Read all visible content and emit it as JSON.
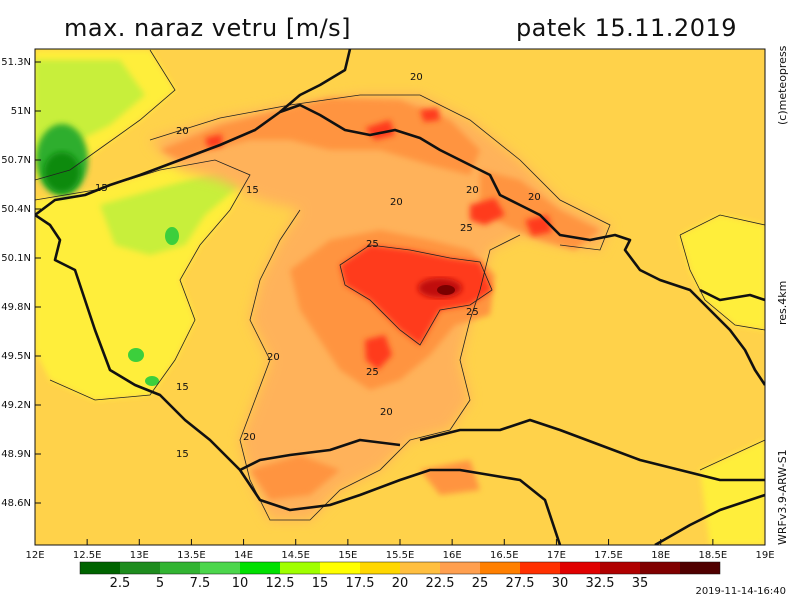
{
  "title": "max. naraz vetru [m/s]",
  "date": "patek 15.11.2019",
  "copyright": "(c)meteopress",
  "resolution": "res.4km",
  "model": "WRFv3.9-ARW-S1",
  "timestamp": "2019-11-14-16:40",
  "lat_ticks": [
    "51.3N",
    "51N",
    "50.7N",
    "50.4N",
    "50.1N",
    "49.8N",
    "49.5N",
    "49.2N",
    "48.9N",
    "48.6N"
  ],
  "lon_ticks": [
    "12E",
    "12.5E",
    "13E",
    "13.5E",
    "14E",
    "14.5E",
    "15E",
    "15.5E",
    "16E",
    "16.5E",
    "17E",
    "17.5E",
    "18E",
    "18.5E",
    "19E"
  ],
  "legend": {
    "labels": [
      "2.5",
      "5",
      "7.5",
      "10",
      "12.5",
      "15",
      "17.5",
      "20",
      "22.5",
      "25",
      "27.5",
      "30",
      "32.5",
      "35"
    ],
    "colors": [
      "#006400",
      "#1e8c1e",
      "#32b432",
      "#4cd64c",
      "#00e000",
      "#a0ff00",
      "#ffff00",
      "#ffd700",
      "#ffbf40",
      "#ff9f4f",
      "#ff7f00",
      "#ff3000",
      "#e00000",
      "#b00000",
      "#800000",
      "#500000"
    ]
  },
  "contour_labels": [
    {
      "text": "20"
    },
    {
      "text": "20"
    },
    {
      "text": "20"
    },
    {
      "text": "20"
    },
    {
      "text": "20"
    },
    {
      "text": "20"
    },
    {
      "text": "20"
    },
    {
      "text": "20"
    },
    {
      "text": "15"
    },
    {
      "text": "15"
    },
    {
      "text": "15"
    },
    {
      "text": "15"
    },
    {
      "text": "25"
    },
    {
      "text": "25"
    },
    {
      "text": "25"
    },
    {
      "text": "25"
    }
  ]
}
